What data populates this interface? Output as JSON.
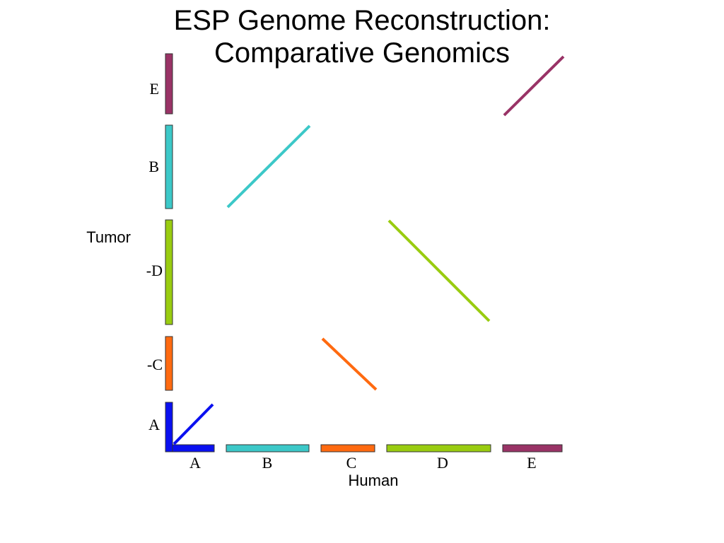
{
  "title": {
    "line1": "ESP Genome Reconstruction:",
    "line2": "Comparative Genomics"
  },
  "axes": {
    "x_title": "Human",
    "y_title": "Tumor"
  },
  "colors": {
    "A": "#0a10f0",
    "B": "#3cc8c8",
    "C": "#ff6a10",
    "D": "#99cc10",
    "E": "#993366"
  },
  "human_segments": [
    {
      "name": "A",
      "label": "A"
    },
    {
      "name": "B",
      "label": "B"
    },
    {
      "name": "C",
      "label": "C"
    },
    {
      "name": "D",
      "label": "D"
    },
    {
      "name": "E",
      "label": "E"
    }
  ],
  "tumor_segments": [
    {
      "name": "A",
      "label": "A"
    },
    {
      "name": "C",
      "label": "-C"
    },
    {
      "name": "D",
      "label": "-D"
    },
    {
      "name": "B",
      "label": "B"
    },
    {
      "name": "E",
      "label": "E"
    }
  ]
}
